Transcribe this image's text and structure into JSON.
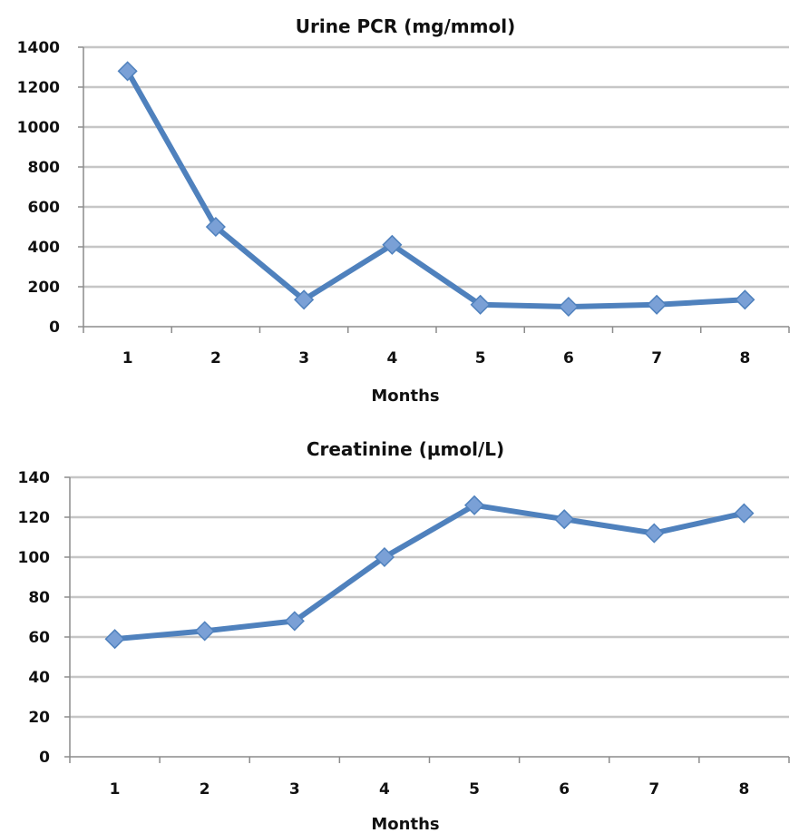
{
  "chart_data": [
    {
      "type": "line",
      "title": "Urine PCR  (mg/mmol)",
      "xlabel": "Months",
      "ylabel": "",
      "x": [
        1,
        2,
        3,
        4,
        5,
        6,
        7,
        8
      ],
      "values": [
        1280,
        500,
        135,
        410,
        110,
        100,
        110,
        135
      ],
      "ylim": [
        0,
        1400
      ],
      "yticks": [
        0,
        200,
        400,
        600,
        800,
        1000,
        1200,
        1400
      ],
      "grid": true,
      "legend": "none",
      "line_color": "#4f81bd",
      "marker": "diamond",
      "marker_color": "#7aa0d6"
    },
    {
      "type": "line",
      "title": "Creatinine (µmol/L)",
      "xlabel": "Months",
      "ylabel": "",
      "x": [
        1,
        2,
        3,
        4,
        5,
        6,
        7,
        8
      ],
      "values": [
        59,
        63,
        68,
        100,
        126,
        119,
        112,
        122
      ],
      "ylim": [
        0,
        140
      ],
      "yticks": [
        0,
        20,
        40,
        60,
        80,
        100,
        120,
        140
      ],
      "grid": true,
      "legend": "none",
      "line_color": "#4f81bd",
      "marker": "diamond",
      "marker_color": "#7aa0d6"
    }
  ]
}
